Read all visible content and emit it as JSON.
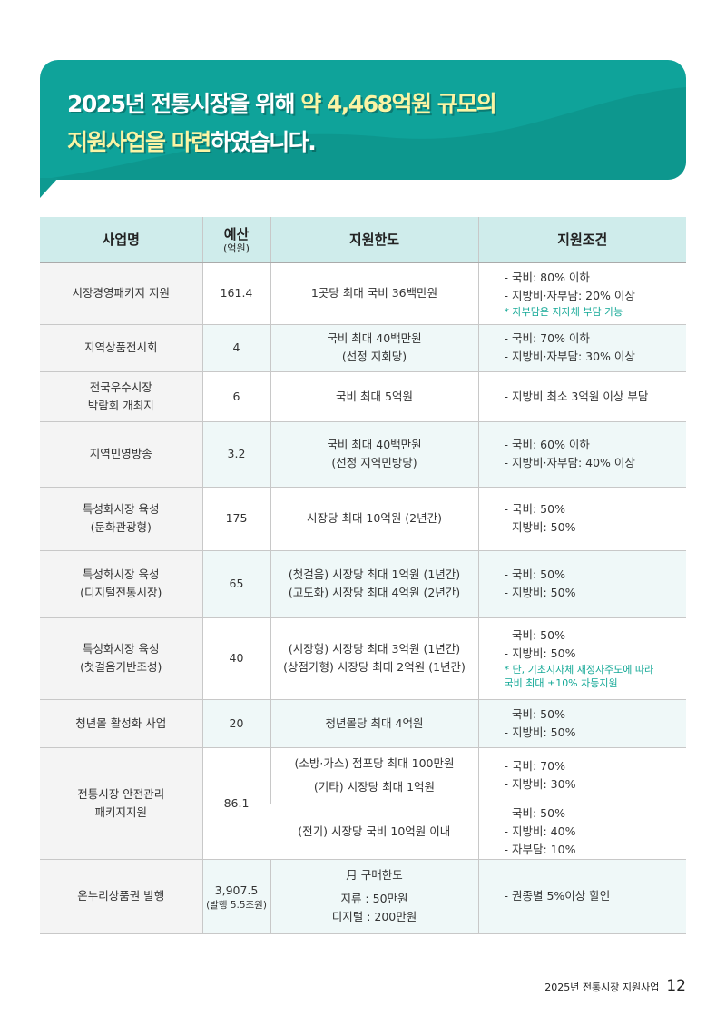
{
  "banner": {
    "line1_a": "2025년 전통시장을 위해 ",
    "line1_b": "약 4,468억원 규모의",
    "line2_a": "지원사업을 마련",
    "line2_b": "하였습니다."
  },
  "table": {
    "headers": {
      "name": "사업명",
      "budget": "예산",
      "budget_unit": "(억원)",
      "limit": "지원한도",
      "cond": "지원조건"
    },
    "rows": [
      {
        "name": [
          "시장경영패키지 지원"
        ],
        "budget": "161.4",
        "limit": [
          "1곳당 최대 국비 36백만원"
        ],
        "cond": [
          "- 국비: 80% 이하",
          "- 지방비·자부담: 20% 이상"
        ],
        "note": [
          "* 자부담은 지자체 부담 가능"
        ]
      },
      {
        "name": [
          "지역상품전시회"
        ],
        "budget": "4",
        "limit": [
          "국비 최대 40백만원",
          "(선정 지회당)"
        ],
        "cond": [
          "- 국비: 70% 이하",
          "- 지방비·자부담: 30% 이상"
        ]
      },
      {
        "name": [
          "전국우수시장",
          "박람회 개최지"
        ],
        "budget": "6",
        "limit": [
          "국비 최대 5억원"
        ],
        "cond": [
          "- 지방비 최소 3억원 이상 부담"
        ]
      },
      {
        "name": [
          "지역민영방송"
        ],
        "budget": "3.2",
        "limit": [
          "국비 최대 40백만원",
          "(선정 지역민방당)"
        ],
        "cond": [
          "- 국비: 60% 이하",
          "- 지방비·자부담: 40% 이상"
        ]
      },
      {
        "name": [
          "특성화시장 육성",
          "(문화관광형)"
        ],
        "budget": "175",
        "limit": [
          "시장당 최대 10억원 (2년간)"
        ],
        "cond": [
          "- 국비: 50%",
          "- 지방비: 50%"
        ]
      },
      {
        "name": [
          "특성화시장 육성",
          "(디지털전통시장)"
        ],
        "budget": "65",
        "limit": [
          "(첫걸음) 시장당 최대 1억원 (1년간)",
          "(고도화) 시장당 최대 4억원 (2년간)"
        ],
        "cond": [
          "- 국비: 50%",
          "- 지방비: 50%"
        ]
      },
      {
        "name": [
          "특성화시장 육성",
          "(첫걸음기반조성)"
        ],
        "budget": "40",
        "limit": [
          "(시장형) 시장당 최대 3억원 (1년간)",
          "(상점가형) 시장당 최대 2억원 (1년간)"
        ],
        "cond": [
          "- 국비: 50%",
          "- 지방비: 50%"
        ],
        "note": [
          "* 단, 기초지자체 재정자주도에 따라",
          "   국비 최대 ±10% 차등지원"
        ]
      },
      {
        "name": [
          "청년몰 활성화 사업"
        ],
        "budget": "20",
        "limit": [
          "청년몰당 최대 4억원"
        ],
        "cond": [
          "- 국비: 50%",
          "- 지방비: 50%"
        ]
      }
    ],
    "safety": {
      "name": [
        "전통시장 안전관리",
        "패키지지원"
      ],
      "budget": "86.1",
      "sub": [
        {
          "limit": [
            "(소방·가스) 점포당 최대 100만원",
            "(기타) 시장당 최대 1억원"
          ],
          "cond": [
            "- 국비: 70%",
            "- 지방비: 30%"
          ]
        },
        {
          "limit": [
            "(전기) 시장당 국비 10억원 이내"
          ],
          "cond": [
            "- 국비: 50%",
            "- 지방비: 40%",
            "- 자부담: 10%"
          ]
        }
      ]
    },
    "onnuri": {
      "name": "온누리상품권 발행",
      "budget": "3,907.5",
      "budget_sub": "(발행 5.5조원)",
      "limit": [
        "月 구매한도",
        "지류 : 50만원",
        "디지털 : 200만원"
      ],
      "cond": [
        "- 권종별 5%이상 할인"
      ]
    }
  },
  "footer": {
    "text": "2025년 전통시장 지원사업",
    "page": "12"
  }
}
